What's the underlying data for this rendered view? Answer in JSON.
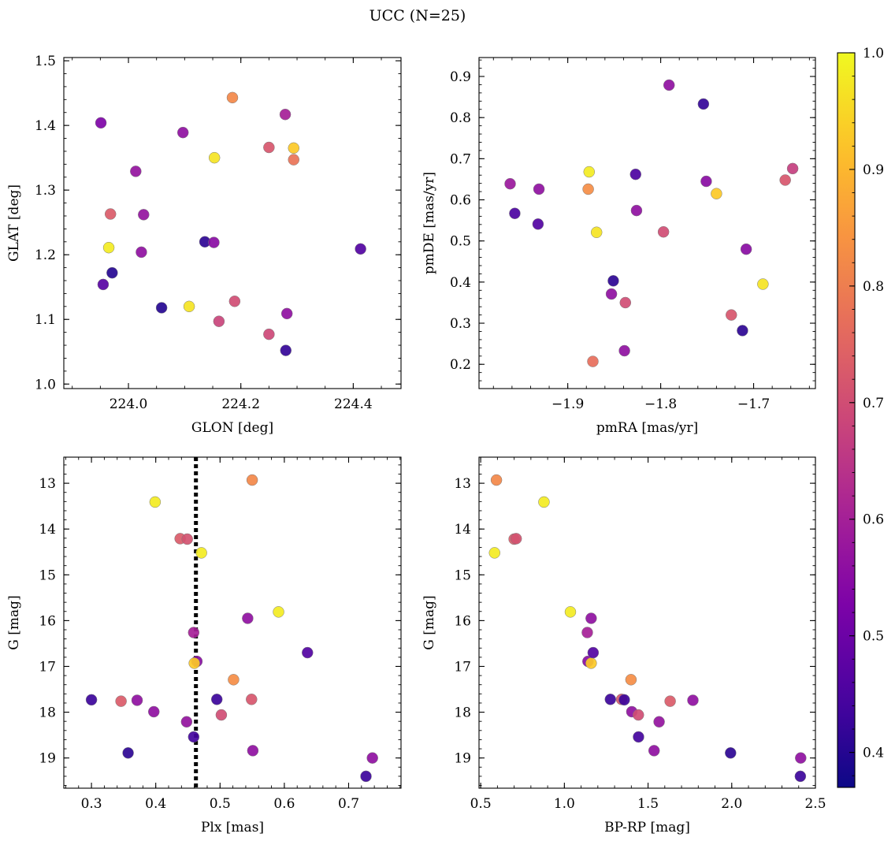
{
  "title": "UCC (N=25)",
  "colorbar": {
    "min": 0.37,
    "max": 1.0,
    "ticks": [
      0.4,
      0.5,
      0.6,
      0.7,
      0.8,
      0.9,
      1.0
    ],
    "tick_labels": [
      "0.4",
      "0.5",
      "0.6",
      "0.7",
      "0.8",
      "0.9",
      "1.0"
    ]
  },
  "chart_data": [
    {
      "type": "scatter",
      "xlabel": "GLON [deg]",
      "ylabel": "GLAT [deg]",
      "xlim": [
        223.885,
        224.485
      ],
      "ylim": [
        0.993,
        1.505
      ],
      "y_inverted": false,
      "xticks": [
        224.0,
        224.2,
        224.4
      ],
      "xtick_labels": [
        "224.0",
        "224.2",
        "224.4"
      ],
      "yticks": [
        1.0,
        1.1,
        1.2,
        1.3,
        1.4,
        1.5
      ],
      "ytick_labels": [
        "1.0",
        "1.1",
        "1.2",
        "1.3",
        "1.4",
        "1.5"
      ],
      "xminor_step": 0.05,
      "yminor_step": 0.02,
      "points": [
        {
          "x": 223.951,
          "y": 1.404,
          "c": 0.53
        },
        {
          "x": 223.968,
          "y": 1.263,
          "c": 0.73
        },
        {
          "x": 223.965,
          "y": 1.211,
          "c": 0.98
        },
        {
          "x": 223.955,
          "y": 1.154,
          "c": 0.47
        },
        {
          "x": 223.971,
          "y": 1.172,
          "c": 0.4
        },
        {
          "x": 224.013,
          "y": 1.329,
          "c": 0.57
        },
        {
          "x": 224.027,
          "y": 1.262,
          "c": 0.57
        },
        {
          "x": 224.023,
          "y": 1.204,
          "c": 0.56
        },
        {
          "x": 224.059,
          "y": 1.118,
          "c": 0.4
        },
        {
          "x": 224.097,
          "y": 1.389,
          "c": 0.56
        },
        {
          "x": 224.108,
          "y": 1.12,
          "c": 0.97
        },
        {
          "x": 224.136,
          "y": 1.22,
          "c": 0.41
        },
        {
          "x": 224.153,
          "y": 1.35,
          "c": 0.97
        },
        {
          "x": 224.152,
          "y": 1.219,
          "c": 0.55
        },
        {
          "x": 224.161,
          "y": 1.097,
          "c": 0.68
        },
        {
          "x": 224.185,
          "y": 1.443,
          "c": 0.82
        },
        {
          "x": 224.189,
          "y": 1.128,
          "c": 0.7
        },
        {
          "x": 224.25,
          "y": 1.366,
          "c": 0.72
        },
        {
          "x": 224.25,
          "y": 1.077,
          "c": 0.69
        },
        {
          "x": 224.279,
          "y": 1.417,
          "c": 0.6
        },
        {
          "x": 224.282,
          "y": 1.109,
          "c": 0.56
        },
        {
          "x": 224.28,
          "y": 1.052,
          "c": 0.42
        },
        {
          "x": 224.294,
          "y": 1.365,
          "c": 0.93
        },
        {
          "x": 224.294,
          "y": 1.347,
          "c": 0.78
        },
        {
          "x": 224.413,
          "y": 1.209,
          "c": 0.46
        }
      ]
    },
    {
      "type": "scatter",
      "xlabel": "pmRA [mas/yr]",
      "ylabel": "pmDE [mas/yr]",
      "xlim": [
        -1.9955,
        -1.6335
      ],
      "ylim": [
        0.141,
        0.946
      ],
      "y_inverted": false,
      "xticks": [
        -1.9,
        -1.8,
        -1.7
      ],
      "xtick_labels": [
        "−1.9",
        "−1.8",
        "−1.7"
      ],
      "yticks": [
        0.2,
        0.3,
        0.4,
        0.5,
        0.6,
        0.7,
        0.8,
        0.9
      ],
      "ytick_labels": [
        "0.2",
        "0.3",
        "0.4",
        "0.5",
        "0.6",
        "0.7",
        "0.8",
        "0.9"
      ],
      "xminor_step": 0.02,
      "yminor_step": 0.02,
      "points": [
        {
          "x": -1.962,
          "y": 0.639,
          "c": 0.58
        },
        {
          "x": -1.957,
          "y": 0.567,
          "c": 0.45
        },
        {
          "x": -1.931,
          "y": 0.626,
          "c": 0.56
        },
        {
          "x": -1.932,
          "y": 0.541,
          "c": 0.46
        },
        {
          "x": -1.877,
          "y": 0.668,
          "c": 0.98
        },
        {
          "x": -1.878,
          "y": 0.626,
          "c": 0.83
        },
        {
          "x": -1.869,
          "y": 0.521,
          "c": 0.97
        },
        {
          "x": -1.873,
          "y": 0.207,
          "c": 0.77
        },
        {
          "x": -1.851,
          "y": 0.403,
          "c": 0.41
        },
        {
          "x": -1.853,
          "y": 0.371,
          "c": 0.56
        },
        {
          "x": -1.838,
          "y": 0.35,
          "c": 0.7
        },
        {
          "x": -1.839,
          "y": 0.233,
          "c": 0.56
        },
        {
          "x": -1.827,
          "y": 0.662,
          "c": 0.45
        },
        {
          "x": -1.826,
          "y": 0.574,
          "c": 0.56
        },
        {
          "x": -1.797,
          "y": 0.522,
          "c": 0.7
        },
        {
          "x": -1.791,
          "y": 0.879,
          "c": 0.56
        },
        {
          "x": -1.754,
          "y": 0.833,
          "c": 0.42
        },
        {
          "x": -1.751,
          "y": 0.645,
          "c": 0.55
        },
        {
          "x": -1.74,
          "y": 0.615,
          "c": 0.93
        },
        {
          "x": -1.724,
          "y": 0.32,
          "c": 0.72
        },
        {
          "x": -1.708,
          "y": 0.48,
          "c": 0.55
        },
        {
          "x": -1.712,
          "y": 0.282,
          "c": 0.41
        },
        {
          "x": -1.69,
          "y": 0.395,
          "c": 0.97
        },
        {
          "x": -1.666,
          "y": 0.648,
          "c": 0.72
        },
        {
          "x": -1.658,
          "y": 0.676,
          "c": 0.67
        }
      ]
    },
    {
      "type": "scatter",
      "xlabel": "Plx [mas]",
      "ylabel": "G [mag]",
      "xlim": [
        0.257,
        0.7815
      ],
      "ylim": [
        19.66,
        12.43
      ],
      "y_inverted": true,
      "vline": {
        "x": 0.4625,
        "style": "dotted"
      },
      "xticks": [
        0.3,
        0.4,
        0.5,
        0.6,
        0.7
      ],
      "xtick_labels": [
        "0.3",
        "0.4",
        "0.5",
        "0.6",
        "0.7"
      ],
      "yticks": [
        13,
        14,
        15,
        16,
        17,
        18,
        19
      ],
      "ytick_labels": [
        "13",
        "14",
        "15",
        "16",
        "17",
        "18",
        "19"
      ],
      "xminor_step": 0.02,
      "yminor_step": 0.2,
      "points": [
        {
          "x": 0.3,
          "y": 17.73,
          "c": 0.43
        },
        {
          "x": 0.357,
          "y": 18.89,
          "c": 0.41
        },
        {
          "x": 0.346,
          "y": 17.76,
          "c": 0.73
        },
        {
          "x": 0.371,
          "y": 17.74,
          "c": 0.56
        },
        {
          "x": 0.397,
          "y": 17.99,
          "c": 0.56
        },
        {
          "x": 0.399,
          "y": 13.41,
          "c": 0.98
        },
        {
          "x": 0.438,
          "y": 14.21,
          "c": 0.73
        },
        {
          "x": 0.449,
          "y": 14.22,
          "c": 0.71
        },
        {
          "x": 0.448,
          "y": 18.21,
          "c": 0.57
        },
        {
          "x": 0.459,
          "y": 18.54,
          "c": 0.44
        },
        {
          "x": 0.459,
          "y": 16.26,
          "c": 0.6
        },
        {
          "x": 0.464,
          "y": 16.89,
          "c": 0.55
        },
        {
          "x": 0.46,
          "y": 16.93,
          "c": 0.93
        },
        {
          "x": 0.471,
          "y": 14.52,
          "c": 0.98
        },
        {
          "x": 0.495,
          "y": 17.72,
          "c": 0.43
        },
        {
          "x": 0.502,
          "y": 18.06,
          "c": 0.7
        },
        {
          "x": 0.521,
          "y": 17.29,
          "c": 0.83
        },
        {
          "x": 0.543,
          "y": 15.95,
          "c": 0.56
        },
        {
          "x": 0.55,
          "y": 12.93,
          "c": 0.82
        },
        {
          "x": 0.549,
          "y": 17.72,
          "c": 0.72
        },
        {
          "x": 0.551,
          "y": 18.84,
          "c": 0.56
        },
        {
          "x": 0.591,
          "y": 15.81,
          "c": 0.98
        },
        {
          "x": 0.636,
          "y": 16.7,
          "c": 0.46
        },
        {
          "x": 0.727,
          "y": 19.4,
          "c": 0.43
        },
        {
          "x": 0.737,
          "y": 19.0,
          "c": 0.56
        }
      ]
    },
    {
      "type": "scatter",
      "xlabel": "BP-RP [mag]",
      "ylabel": "G [mag]",
      "xlim": [
        0.49,
        2.5
      ],
      "ylim": [
        19.66,
        12.43
      ],
      "y_inverted": true,
      "xticks": [
        0.5,
        1.0,
        1.5,
        2.0,
        2.5
      ],
      "xtick_labels": [
        "0.5",
        "1.0",
        "1.5",
        "2.0",
        "2.5"
      ],
      "yticks": [
        13,
        14,
        15,
        16,
        17,
        18,
        19
      ],
      "ytick_labels": [
        "13",
        "14",
        "15",
        "16",
        "17",
        "18",
        "19"
      ],
      "xminor_step": 0.1,
      "yminor_step": 0.2,
      "points": [
        {
          "x": 0.594,
          "y": 12.93,
          "c": 0.82
        },
        {
          "x": 0.583,
          "y": 14.52,
          "c": 0.98
        },
        {
          "x": 0.7,
          "y": 14.22,
          "c": 0.73
        },
        {
          "x": 0.712,
          "y": 14.21,
          "c": 0.71
        },
        {
          "x": 0.878,
          "y": 13.41,
          "c": 0.98
        },
        {
          "x": 1.036,
          "y": 15.81,
          "c": 0.98
        },
        {
          "x": 1.16,
          "y": 15.95,
          "c": 0.56
        },
        {
          "x": 1.137,
          "y": 16.26,
          "c": 0.6
        },
        {
          "x": 1.141,
          "y": 16.89,
          "c": 0.55
        },
        {
          "x": 1.16,
          "y": 16.93,
          "c": 0.93
        },
        {
          "x": 1.172,
          "y": 16.7,
          "c": 0.46
        },
        {
          "x": 1.275,
          "y": 17.72,
          "c": 0.43
        },
        {
          "x": 1.342,
          "y": 17.72,
          "c": 0.72
        },
        {
          "x": 1.358,
          "y": 17.73,
          "c": 0.43
        },
        {
          "x": 1.398,
          "y": 17.29,
          "c": 0.83
        },
        {
          "x": 1.403,
          "y": 17.99,
          "c": 0.56
        },
        {
          "x": 1.442,
          "y": 18.06,
          "c": 0.7
        },
        {
          "x": 1.443,
          "y": 18.54,
          "c": 0.44
        },
        {
          "x": 1.536,
          "y": 18.84,
          "c": 0.56
        },
        {
          "x": 1.566,
          "y": 18.21,
          "c": 0.57
        },
        {
          "x": 1.632,
          "y": 17.76,
          "c": 0.73
        },
        {
          "x": 1.768,
          "y": 17.74,
          "c": 0.56
        },
        {
          "x": 1.993,
          "y": 18.89,
          "c": 0.41
        },
        {
          "x": 2.412,
          "y": 19.0,
          "c": 0.56
        },
        {
          "x": 2.41,
          "y": 19.4,
          "c": 0.43
        }
      ]
    }
  ]
}
